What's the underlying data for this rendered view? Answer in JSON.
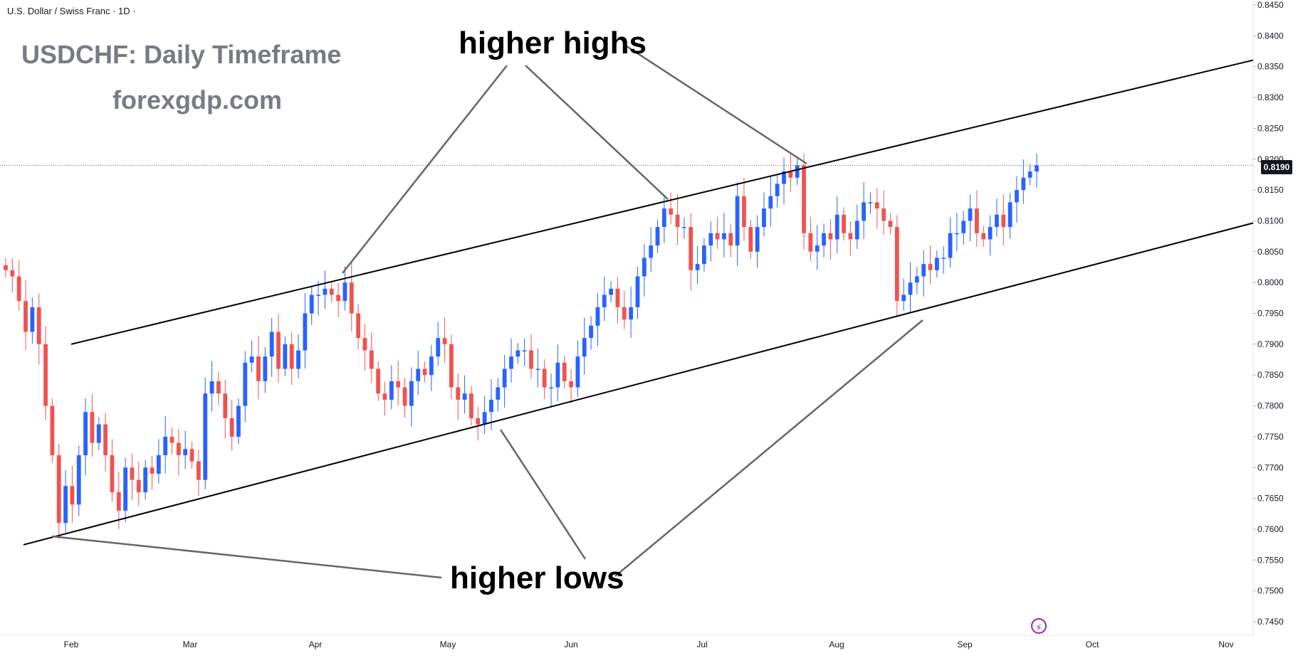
{
  "header": {
    "symbol": "U.S. Dollar / Swiss Franc · 1D ·"
  },
  "title_overlay": "USDCHF: Daily Timeframe",
  "subtitle_overlay": "forexgdp.com",
  "annotations": {
    "highs": "higher highs",
    "lows": "higher lows"
  },
  "last_price_label": "0.8190",
  "icons": {
    "replay": "lightning-bolt-icon"
  },
  "colors": {
    "up": "#2962ff",
    "down": "#ef5350",
    "line": "#000000",
    "connector": "#666666"
  },
  "chart_data": {
    "type": "candlestick",
    "title": "USDCHF: Daily Timeframe",
    "x_ticks": [
      "Feb",
      "Mar",
      "Apr",
      "May",
      "Jun",
      "Jul",
      "Aug",
      "Sep",
      "Oct",
      "Nov"
    ],
    "y_ticks": [
      "0.8450",
      "0.8400",
      "0.8350",
      "0.8300",
      "0.8250",
      "0.8200",
      "0.8150",
      "0.8100",
      "0.8050",
      "0.8000",
      "0.7950",
      "0.7900",
      "0.7850",
      "0.7800",
      "0.7750",
      "0.7700",
      "0.7650",
      "0.7600",
      "0.7550",
      "0.7500",
      "0.7450"
    ],
    "ylim": [
      0.7435,
      0.8455
    ],
    "last_price": 0.819,
    "close_series": [
      0.802,
      0.801,
      0.797,
      0.792,
      0.796,
      0.79,
      0.78,
      0.772,
      0.761,
      0.767,
      0.764,
      0.772,
      0.779,
      0.774,
      0.777,
      0.772,
      0.766,
      0.763,
      0.77,
      0.768,
      0.766,
      0.77,
      0.769,
      0.772,
      0.775,
      0.774,
      0.772,
      0.773,
      0.771,
      0.768,
      0.782,
      0.784,
      0.782,
      0.778,
      0.775,
      0.78,
      0.787,
      0.788,
      0.784,
      0.788,
      0.792,
      0.786,
      0.79,
      0.786,
      0.789,
      0.795,
      0.798,
      0.798,
      0.799,
      0.798,
      0.797,
      0.8,
      0.795,
      0.791,
      0.789,
      0.786,
      0.782,
      0.781,
      0.784,
      0.783,
      0.78,
      0.784,
      0.786,
      0.785,
      0.788,
      0.791,
      0.79,
      0.783,
      0.781,
      0.782,
      0.778,
      0.777,
      0.779,
      0.781,
      0.783,
      0.786,
      0.788,
      0.789,
      0.789,
      0.786,
      0.786,
      0.783,
      0.783,
      0.787,
      0.784,
      0.783,
      0.788,
      0.791,
      0.793,
      0.796,
      0.798,
      0.799,
      0.796,
      0.794,
      0.796,
      0.801,
      0.804,
      0.806,
      0.809,
      0.812,
      0.811,
      0.809,
      0.809,
      0.802,
      0.803,
      0.806,
      0.808,
      0.807,
      0.808,
      0.806,
      0.814,
      0.809,
      0.805,
      0.809,
      0.812,
      0.814,
      0.816,
      0.818,
      0.817,
      0.819,
      0.808,
      0.805,
      0.806,
      0.808,
      0.807,
      0.811,
      0.808,
      0.807,
      0.81,
      0.813,
      0.813,
      0.812,
      0.81,
      0.809,
      0.797,
      0.798,
      0.8,
      0.801,
      0.803,
      0.802,
      0.804,
      0.804,
      0.808,
      0.808,
      0.81,
      0.812,
      0.808,
      0.807,
      0.809,
      0.811,
      0.809,
      0.813,
      0.815,
      0.817,
      0.818,
      0.819
    ],
    "trendlines": [
      {
        "name": "upper-channel",
        "from": [
          "Feb",
          0.79
        ],
        "to": [
          "Nov",
          0.835
        ]
      },
      {
        "name": "lower-channel",
        "from": [
          "Feb",
          0.7595
        ],
        "to": [
          "Nov",
          0.8085
        ]
      }
    ]
  }
}
